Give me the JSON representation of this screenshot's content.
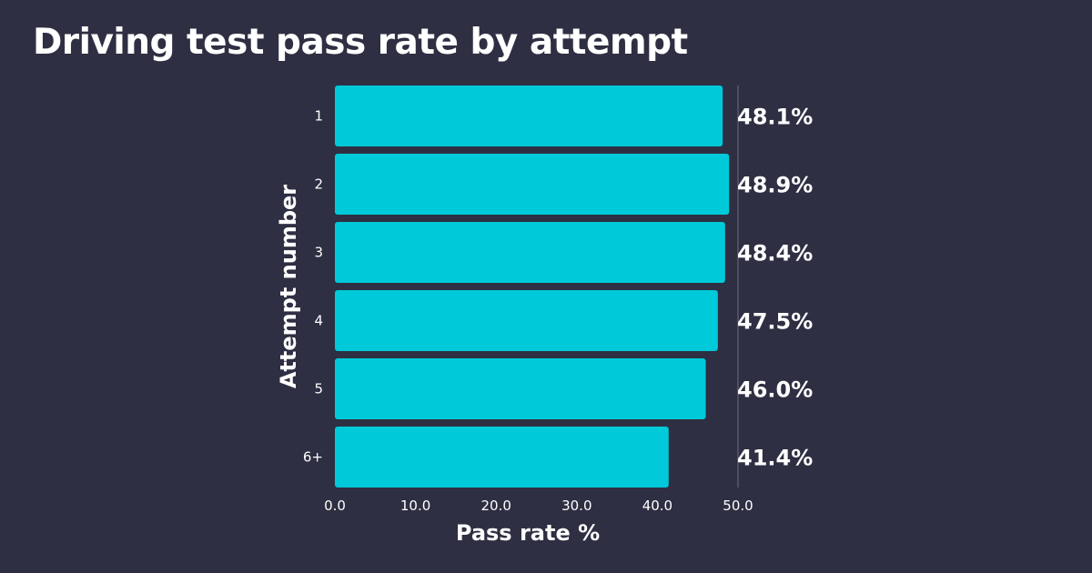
{
  "title": "Driving test pass rate by attempt",
  "colors": {
    "background": "#2e2f42",
    "bar": "#00c9d9",
    "text": "#ffffff",
    "reference_line": "#6b6d80"
  },
  "chart_data": {
    "type": "bar",
    "orientation": "horizontal",
    "title": "Driving test pass rate by attempt",
    "xlabel": "Pass rate %",
    "ylabel": "Attempt number",
    "categories": [
      "1",
      "2",
      "3",
      "4",
      "5",
      "6+"
    ],
    "values": [
      48.1,
      48.9,
      48.4,
      47.5,
      46.0,
      41.4
    ],
    "data_labels": [
      "48.1%",
      "48.9%",
      "48.4%",
      "47.5%",
      "46.0%",
      "41.4%"
    ],
    "xlim": [
      0,
      50
    ],
    "xticks": [
      "0.0",
      "10.0",
      "20.0",
      "30.0",
      "40.0",
      "50.0"
    ],
    "grid": false,
    "legend": "none",
    "reference_line_x": 50
  }
}
